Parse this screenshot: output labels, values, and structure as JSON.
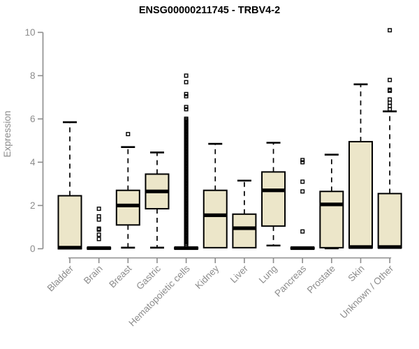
{
  "chart_data": {
    "type": "boxplot",
    "title": "ENSG00000211745 - TRBV4-2",
    "ylabel": "Expression",
    "xlabel": "",
    "ylim": [
      0,
      10
    ],
    "yticks": [
      0,
      2,
      4,
      6,
      8,
      10
    ],
    "grid": false,
    "legend_position": "none",
    "colors": {
      "box_fill": "#ece6c9",
      "box_stroke": "#000000",
      "median": "#000000",
      "whisker": "#000000",
      "axis": "#8c8c8c",
      "text": "#8c8c8c",
      "title": "#000000",
      "background": "#ffffff"
    },
    "categories": [
      "Bladder",
      "Brain",
      "Breast",
      "Gastric",
      "Hematopoietic cells",
      "Kidney",
      "Liver",
      "Lung",
      "Pancreas",
      "Prostate",
      "Skin",
      "Unknown / Other"
    ],
    "boxes": [
      {
        "label": "Bladder",
        "q1": 0,
        "median": 0.05,
        "q3": 2.45,
        "whisker_low": null,
        "whisker_high": 5.85,
        "outliers": []
      },
      {
        "label": "Brain",
        "q1": 0,
        "median": 0.03,
        "q3": 0.05,
        "whisker_low": null,
        "whisker_high": null,
        "outliers": [
          0.45,
          0.65,
          0.88,
          0.93,
          1.35,
          1.5,
          1.85
        ]
      },
      {
        "label": "Breast",
        "q1": 1.1,
        "median": 2.0,
        "q3": 2.7,
        "whisker_low": 0.05,
        "whisker_high": 4.7,
        "outliers": [
          5.3
        ]
      },
      {
        "label": "Gastric",
        "q1": 1.85,
        "median": 2.65,
        "q3": 3.45,
        "whisker_low": 0.05,
        "whisker_high": 4.45,
        "outliers": []
      },
      {
        "label": "Hematopoietic cells",
        "q1": 0,
        "median": 0.03,
        "q3": 0.05,
        "whisker_low": null,
        "whisker_high": null,
        "outliers": [
          6.45,
          6.55,
          7.05,
          7.15,
          7.7,
          8.0
        ],
        "outlier_band": {
          "from": 0.18,
          "to": 6.05,
          "step": 0.055
        }
      },
      {
        "label": "Kidney",
        "q1": 0.05,
        "median": 1.55,
        "q3": 2.7,
        "whisker_low": null,
        "whisker_high": 4.85,
        "outliers": []
      },
      {
        "label": "Liver",
        "q1": 0.05,
        "median": 0.95,
        "q3": 1.6,
        "whisker_low": null,
        "whisker_high": 3.15,
        "outliers": []
      },
      {
        "label": "Lung",
        "q1": 1.05,
        "median": 2.7,
        "q3": 3.55,
        "whisker_low": 0.15,
        "whisker_high": 4.9,
        "outliers": []
      },
      {
        "label": "Pancreas",
        "q1": 0,
        "median": 0.03,
        "q3": 0.05,
        "whisker_low": null,
        "whisker_high": null,
        "outliers": [
          0.8,
          2.65,
          3.1,
          4.0,
          4.1
        ]
      },
      {
        "label": "Prostate",
        "q1": 0.05,
        "median": 2.05,
        "q3": 2.65,
        "whisker_low": 0.02,
        "whisker_high": 4.35,
        "outliers": []
      },
      {
        "label": "Skin",
        "q1": 0.05,
        "median": 0.08,
        "q3": 4.95,
        "whisker_low": null,
        "whisker_high": 7.6,
        "outliers": []
      },
      {
        "label": "Unknown / Other",
        "q1": 0.05,
        "median": 0.08,
        "q3": 2.55,
        "whisker_low": null,
        "whisker_high": 6.35,
        "outliers": [
          6.45,
          6.6,
          6.75,
          6.9,
          7.3,
          7.35,
          7.8,
          10.1
        ]
      }
    ]
  }
}
